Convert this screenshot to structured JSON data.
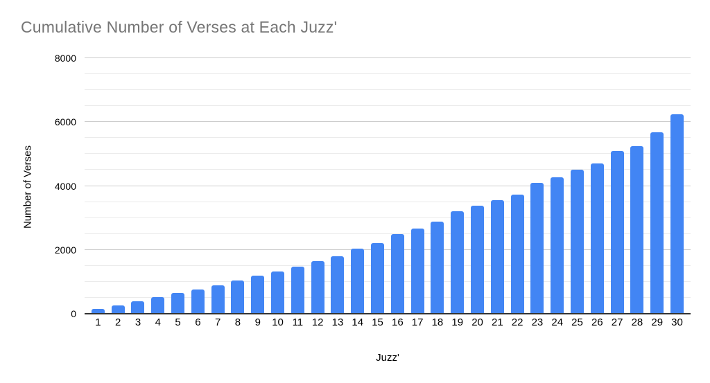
{
  "title": {
    "text": "Cumulative Number of Verses at Each Juzz'",
    "color": "#757575"
  },
  "y_axis": {
    "title": "Number of Verses",
    "ticks": [
      0,
      2000,
      4000,
      6000,
      8000
    ],
    "max": 8000,
    "minor_step": 500
  },
  "x_axis": {
    "title": "Juzz'"
  },
  "colors": {
    "background": "#ffffff",
    "bar": "#4285f4",
    "major_grid": "#cccccc",
    "minor_grid": "#ebebeb",
    "axis_line": "#333333",
    "title": "#757575",
    "tick_label": "#000000"
  },
  "chart_data": {
    "type": "bar",
    "title": "Cumulative Number of Verses at Each Juzz'",
    "xlabel": "Juzz'",
    "ylabel": "Number of Verses",
    "ylim": [
      0,
      8000
    ],
    "grid": "on",
    "legend": "none",
    "categories": [
      "1",
      "2",
      "3",
      "4",
      "5",
      "6",
      "7",
      "8",
      "9",
      "10",
      "11",
      "12",
      "13",
      "14",
      "15",
      "16",
      "17",
      "18",
      "19",
      "20",
      "21",
      "22",
      "23",
      "24",
      "25",
      "26",
      "27",
      "28",
      "29",
      "30"
    ],
    "values": [
      148,
      259,
      385,
      516,
      640,
      750,
      899,
      1041,
      1200,
      1327,
      1478,
      1648,
      1802,
      2029,
      2214,
      2483,
      2673,
      2875,
      3214,
      3385,
      3563,
      3732,
      4089,
      4264,
      4510,
      4705,
      5104,
      5241,
      5672,
      6236
    ]
  }
}
